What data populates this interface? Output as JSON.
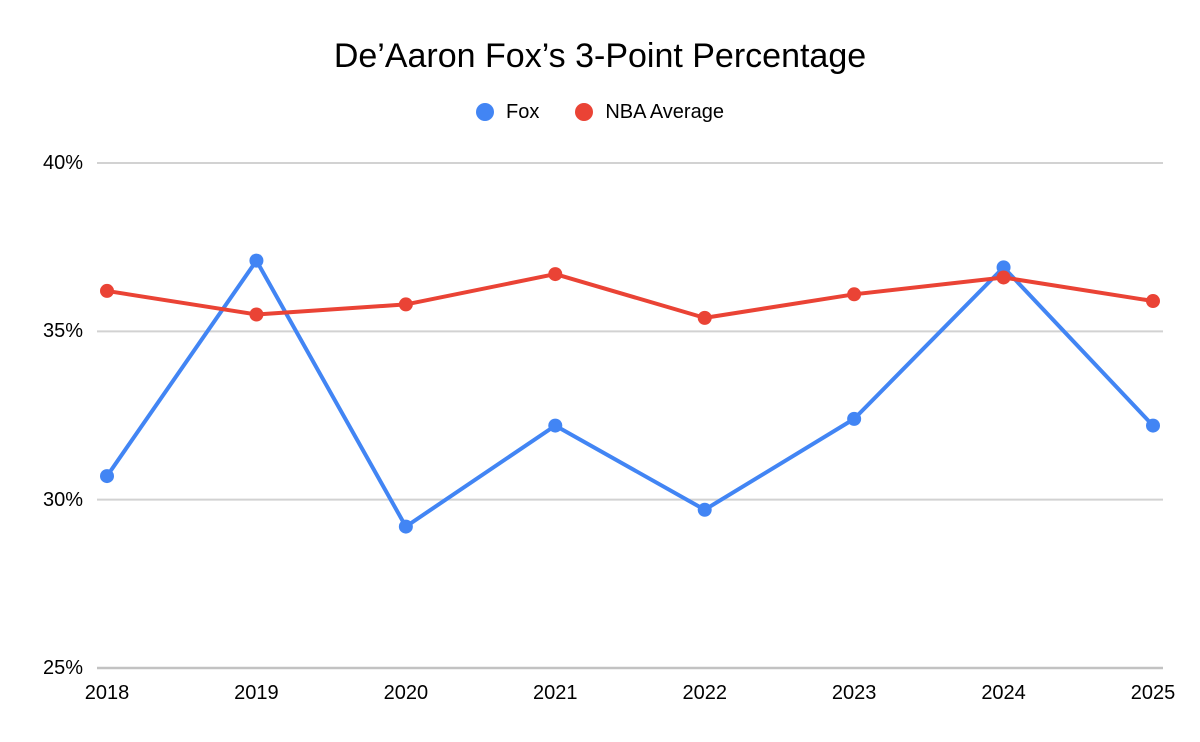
{
  "title": "De’Aaron Fox’s 3-Point Percentage",
  "legend": {
    "position": "top",
    "items": [
      {
        "label": "Fox",
        "color": "#4285F4"
      },
      {
        "label": "NBA Average",
        "color": "#EA4335"
      }
    ]
  },
  "chart_data": {
    "type": "line",
    "title": "De’Aaron Fox’s 3-Point Percentage",
    "categories": [
      "2018",
      "2019",
      "2020",
      "2021",
      "2022",
      "2023",
      "2024",
      "2025"
    ],
    "series": [
      {
        "name": "Fox",
        "color": "#4285F4",
        "values": [
          30.7,
          37.1,
          29.2,
          32.2,
          29.7,
          32.4,
          36.9,
          32.2
        ]
      },
      {
        "name": "NBA Average",
        "color": "#EA4335",
        "values": [
          36.2,
          35.5,
          35.8,
          36.7,
          35.4,
          36.1,
          36.6,
          35.9
        ]
      }
    ],
    "xlabel": "",
    "ylabel": "",
    "ylim": [
      25,
      40
    ],
    "yticks": [
      25,
      30,
      35,
      40
    ],
    "ytick_suffix": "%",
    "grid": "horizontal",
    "legend_position": "top",
    "marker": "circle",
    "colors": {
      "background": "#ffffff",
      "gridline": "#d2d2d2",
      "baseline": "#c2c2c2",
      "tick_text": "#000000",
      "title_text": "#000000"
    }
  }
}
